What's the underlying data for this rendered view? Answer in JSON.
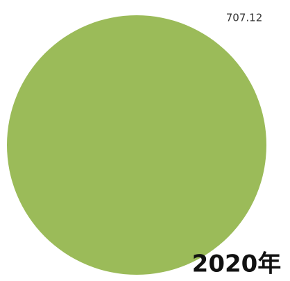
{
  "chart_data": {
    "type": "pie",
    "title": "2020年",
    "values": [
      707.12
    ],
    "colors": [
      "#9bbb59"
    ],
    "show_value_labels": true
  }
}
